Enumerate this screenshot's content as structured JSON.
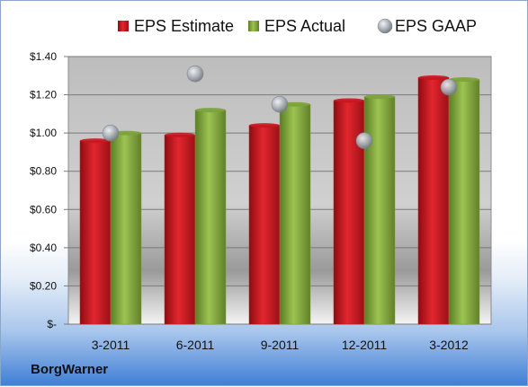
{
  "company": "BorgWarner",
  "chart_data": {
    "type": "bar",
    "categories": [
      "3-2011",
      "6-2011",
      "9-2011",
      "12-2011",
      "3-2012"
    ],
    "series": [
      {
        "name": "EPS Estimate",
        "kind": "bar",
        "color": "#c8161e",
        "values": [
          0.96,
          0.99,
          1.04,
          1.17,
          1.29
        ]
      },
      {
        "name": "EPS Actual",
        "kind": "bar",
        "color": "#7ba33a",
        "values": [
          1.0,
          1.12,
          1.15,
          1.19,
          1.28
        ]
      },
      {
        "name": "EPS GAAP",
        "kind": "scatter",
        "color": "#a8aeb6",
        "values": [
          1.0,
          1.31,
          1.15,
          0.96,
          1.24
        ]
      }
    ],
    "yticks": [
      "$-",
      "$0.20",
      "$0.40",
      "$0.60",
      "$0.80",
      "$1.00",
      "$1.20",
      "$1.40"
    ],
    "ylim": [
      0,
      1.4
    ],
    "grid": true,
    "legend_position": "top"
  }
}
